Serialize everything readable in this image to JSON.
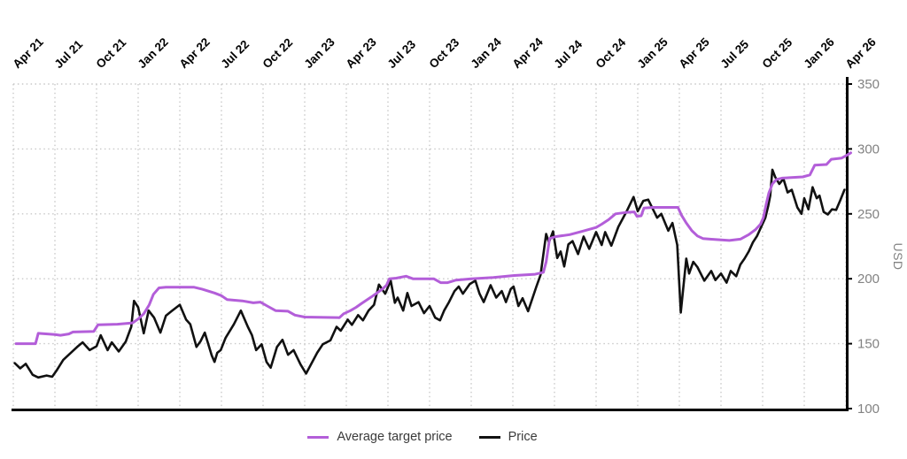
{
  "chart_data": {
    "type": "line",
    "title": "",
    "x_axis": {
      "tick_labels": [
        "Apr 21",
        "Jul 21",
        "Oct 21",
        "Jan 22",
        "Apr 22",
        "Jul 22",
        "Oct 22",
        "Jan 23",
        "Apr 23",
        "Jul 23",
        "Oct 23",
        "Jan 24",
        "Apr 24",
        "Jul 24",
        "Oct 24",
        "Jan 25",
        "Apr 25",
        "Jul 25",
        "Oct 25",
        "Jan 26",
        "Apr 26"
      ],
      "tick_interval_months": 3,
      "range_months": [
        0,
        60
      ],
      "labels_position": "top",
      "labels_rotation_deg": -45
    },
    "y_axis": {
      "label": "USD",
      "ticks": [
        100,
        150,
        200,
        250,
        300,
        350
      ],
      "range": [
        100,
        350
      ],
      "side": "right",
      "tick_color": "#828282"
    },
    "grid": {
      "style": "dotted",
      "color": "#c9c9c9"
    },
    "axis_line_color": "#000000",
    "legend_position": "bottom-center",
    "series": [
      {
        "name": "Average target price",
        "color": "#b35ed9",
        "width": 3,
        "x_unit": "months since Apr 2021",
        "points": [
          [
            0.2,
            150
          ],
          [
            1.6,
            150
          ],
          [
            1.8,
            158
          ],
          [
            3.0,
            157
          ],
          [
            3.4,
            156.5
          ],
          [
            4.0,
            157.5
          ],
          [
            4.3,
            159
          ],
          [
            5.8,
            159.5
          ],
          [
            6.1,
            164.5
          ],
          [
            7.5,
            165
          ],
          [
            8.6,
            166
          ],
          [
            9.0,
            169
          ],
          [
            9.4,
            173
          ],
          [
            9.8,
            180
          ],
          [
            10.1,
            188
          ],
          [
            10.5,
            193
          ],
          [
            11.0,
            193.5
          ],
          [
            13.0,
            193.5
          ],
          [
            13.6,
            192
          ],
          [
            14.5,
            189
          ],
          [
            15.0,
            187
          ],
          [
            15.4,
            184
          ],
          [
            16.5,
            183
          ],
          [
            17.3,
            181.5
          ],
          [
            17.8,
            182
          ],
          [
            18.3,
            179
          ],
          [
            18.9,
            175.5
          ],
          [
            19.8,
            175
          ],
          [
            20.3,
            172
          ],
          [
            21.0,
            170.5
          ],
          [
            23.5,
            170
          ],
          [
            23.8,
            173
          ],
          [
            24.3,
            175.5
          ],
          [
            24.7,
            178
          ],
          [
            25.1,
            181
          ],
          [
            25.8,
            186
          ],
          [
            26.6,
            192
          ],
          [
            26.9,
            195
          ],
          [
            27.1,
            200
          ],
          [
            27.6,
            200.5
          ],
          [
            28.3,
            202
          ],
          [
            28.8,
            200
          ],
          [
            30.3,
            200
          ],
          [
            30.8,
            197
          ],
          [
            31.3,
            197
          ],
          [
            31.9,
            199
          ],
          [
            33.0,
            200
          ],
          [
            34.6,
            201
          ],
          [
            36.1,
            202.5
          ],
          [
            37.6,
            203.5
          ],
          [
            38.2,
            205
          ],
          [
            38.4,
            213
          ],
          [
            38.65,
            231
          ],
          [
            39.1,
            232.5
          ],
          [
            40.1,
            234
          ],
          [
            41.0,
            236.5
          ],
          [
            42.0,
            239.5
          ],
          [
            42.4,
            242
          ],
          [
            42.9,
            245.5
          ],
          [
            43.4,
            250
          ],
          [
            44.1,
            251
          ],
          [
            44.75,
            251.5
          ],
          [
            44.95,
            248
          ],
          [
            45.25,
            248.5
          ],
          [
            45.45,
            254.5
          ],
          [
            46.1,
            255
          ],
          [
            47.9,
            255
          ],
          [
            48.15,
            249
          ],
          [
            48.5,
            243
          ],
          [
            48.9,
            237
          ],
          [
            49.3,
            233
          ],
          [
            49.7,
            231
          ],
          [
            50.2,
            230.5
          ],
          [
            51.6,
            229.5
          ],
          [
            52.4,
            230.5
          ],
          [
            53.0,
            234
          ],
          [
            53.5,
            238
          ],
          [
            53.85,
            242
          ],
          [
            54.05,
            247
          ],
          [
            54.25,
            257
          ],
          [
            54.45,
            266
          ],
          [
            54.7,
            273
          ],
          [
            55.0,
            276.5
          ],
          [
            55.4,
            277.5
          ],
          [
            56.9,
            278.5
          ],
          [
            57.4,
            280
          ],
          [
            57.75,
            287.5
          ],
          [
            58.6,
            288
          ],
          [
            58.95,
            292
          ],
          [
            59.7,
            293
          ],
          [
            60.05,
            295
          ],
          [
            60.35,
            297
          ]
        ]
      },
      {
        "name": "Price",
        "color": "#111111",
        "width": 2.6,
        "x_unit": "months since Apr 2021",
        "points": [
          [
            0.1,
            135
          ],
          [
            0.5,
            131
          ],
          [
            0.9,
            134.5
          ],
          [
            1.4,
            126
          ],
          [
            1.8,
            124
          ],
          [
            2.4,
            125.5
          ],
          [
            2.8,
            124.5
          ],
          [
            3.1,
            129
          ],
          [
            3.6,
            137.5
          ],
          [
            4.0,
            141.5
          ],
          [
            4.6,
            147.5
          ],
          [
            5.0,
            151
          ],
          [
            5.5,
            145
          ],
          [
            6.0,
            148
          ],
          [
            6.3,
            156.5
          ],
          [
            6.8,
            145
          ],
          [
            7.1,
            151
          ],
          [
            7.6,
            144
          ],
          [
            8.1,
            151.5
          ],
          [
            8.5,
            163
          ],
          [
            8.7,
            183
          ],
          [
            9.0,
            178
          ],
          [
            9.4,
            158
          ],
          [
            9.75,
            175.5
          ],
          [
            10.15,
            170
          ],
          [
            10.6,
            158.5
          ],
          [
            11.0,
            171.5
          ],
          [
            11.4,
            175
          ],
          [
            12.0,
            180
          ],
          [
            12.45,
            168.5
          ],
          [
            12.75,
            165
          ],
          [
            13.2,
            147.5
          ],
          [
            13.5,
            152
          ],
          [
            13.8,
            158.5
          ],
          [
            14.3,
            141
          ],
          [
            14.5,
            136
          ],
          [
            14.7,
            143
          ],
          [
            14.95,
            145
          ],
          [
            15.3,
            154.5
          ],
          [
            15.9,
            165
          ],
          [
            16.4,
            175.5
          ],
          [
            16.9,
            163
          ],
          [
            17.2,
            156.5
          ],
          [
            17.5,
            145
          ],
          [
            17.9,
            149.5
          ],
          [
            18.25,
            136
          ],
          [
            18.55,
            131.5
          ],
          [
            19.0,
            147.5
          ],
          [
            19.4,
            153
          ],
          [
            19.8,
            141.5
          ],
          [
            20.2,
            145
          ],
          [
            20.7,
            134
          ],
          [
            21.1,
            127
          ],
          [
            21.9,
            143
          ],
          [
            22.3,
            149.5
          ],
          [
            22.85,
            152.5
          ],
          [
            23.3,
            163
          ],
          [
            23.6,
            160
          ],
          [
            24.1,
            168.5
          ],
          [
            24.4,
            164.5
          ],
          [
            24.85,
            172
          ],
          [
            25.2,
            168
          ],
          [
            25.6,
            175.5
          ],
          [
            26.0,
            180
          ],
          [
            26.35,
            195.5
          ],
          [
            26.8,
            188.5
          ],
          [
            27.2,
            198.5
          ],
          [
            27.5,
            181.5
          ],
          [
            27.7,
            185.5
          ],
          [
            28.1,
            175.5
          ],
          [
            28.4,
            189
          ],
          [
            28.7,
            179
          ],
          [
            29.2,
            182
          ],
          [
            29.6,
            173.5
          ],
          [
            30.0,
            179
          ],
          [
            30.4,
            170
          ],
          [
            30.75,
            168
          ],
          [
            31.05,
            175.5
          ],
          [
            31.4,
            182
          ],
          [
            31.8,
            190.5
          ],
          [
            32.1,
            194
          ],
          [
            32.4,
            188.5
          ],
          [
            32.9,
            196
          ],
          [
            33.3,
            198.5
          ],
          [
            33.6,
            188.5
          ],
          [
            33.9,
            182
          ],
          [
            34.4,
            195
          ],
          [
            34.8,
            185.5
          ],
          [
            35.2,
            190.5
          ],
          [
            35.5,
            182
          ],
          [
            35.85,
            192
          ],
          [
            36.05,
            194
          ],
          [
            36.4,
            179
          ],
          [
            36.7,
            185
          ],
          [
            37.1,
            175
          ],
          [
            37.7,
            194
          ],
          [
            38.0,
            203
          ],
          [
            38.4,
            234.5
          ],
          [
            38.6,
            228
          ],
          [
            38.9,
            236.5
          ],
          [
            39.2,
            216
          ],
          [
            39.45,
            221
          ],
          [
            39.7,
            209.5
          ],
          [
            40.0,
            226.5
          ],
          [
            40.3,
            229
          ],
          [
            40.7,
            219
          ],
          [
            41.1,
            232.5
          ],
          [
            41.5,
            223
          ],
          [
            42.0,
            236
          ],
          [
            42.4,
            226
          ],
          [
            42.65,
            236
          ],
          [
            43.1,
            225.5
          ],
          [
            43.6,
            240
          ],
          [
            44.2,
            252
          ],
          [
            44.7,
            263
          ],
          [
            45.0,
            252
          ],
          [
            45.4,
            260
          ],
          [
            45.75,
            261
          ],
          [
            46.4,
            247
          ],
          [
            46.7,
            250
          ],
          [
            47.2,
            237
          ],
          [
            47.5,
            243
          ],
          [
            47.85,
            226
          ],
          [
            48.1,
            174
          ],
          [
            48.5,
            215.5
          ],
          [
            48.7,
            204
          ],
          [
            49.0,
            213
          ],
          [
            49.3,
            209
          ],
          [
            49.8,
            198.5
          ],
          [
            50.3,
            206
          ],
          [
            50.6,
            199
          ],
          [
            51.0,
            204
          ],
          [
            51.4,
            197
          ],
          [
            51.7,
            206
          ],
          [
            52.1,
            202
          ],
          [
            52.4,
            211
          ],
          [
            52.7,
            215.5
          ],
          [
            53.0,
            221
          ],
          [
            53.3,
            228
          ],
          [
            53.6,
            233
          ],
          [
            53.9,
            240
          ],
          [
            54.2,
            247
          ],
          [
            54.4,
            256
          ],
          [
            54.55,
            264
          ],
          [
            54.7,
            284
          ],
          [
            54.9,
            278.5
          ],
          [
            55.2,
            273
          ],
          [
            55.5,
            277
          ],
          [
            55.8,
            266.5
          ],
          [
            56.1,
            268.5
          ],
          [
            56.5,
            255
          ],
          [
            56.8,
            250
          ],
          [
            57.0,
            262
          ],
          [
            57.3,
            253.5
          ],
          [
            57.6,
            270.5
          ],
          [
            57.9,
            262
          ],
          [
            58.1,
            264
          ],
          [
            58.4,
            251.5
          ],
          [
            58.7,
            249.5
          ],
          [
            59.0,
            253.5
          ],
          [
            59.3,
            253
          ],
          [
            59.6,
            260.5
          ],
          [
            59.9,
            268.5
          ]
        ]
      }
    ]
  },
  "legend": {
    "items": [
      {
        "label": "Average target price"
      },
      {
        "label": "Price"
      }
    ]
  }
}
